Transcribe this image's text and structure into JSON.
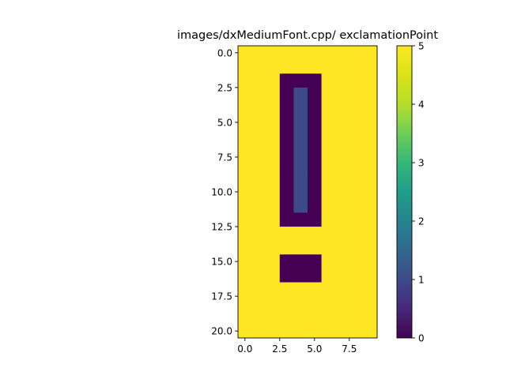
{
  "chart_data": {
    "type": "heatmap",
    "title": "images/dxMediumFont.cpp/ exclamationPoint",
    "xlabel": "",
    "ylabel": "",
    "n_rows": 21,
    "n_cols": 10,
    "xlim": [
      -0.5,
      9.5
    ],
    "ylim": [
      20.5,
      -0.5
    ],
    "x_ticks": [
      0.0,
      2.5,
      5.0,
      7.5
    ],
    "x_tick_labels": [
      "0.0",
      "2.5",
      "5.0",
      "7.5"
    ],
    "y_ticks": [
      0.0,
      2.5,
      5.0,
      7.5,
      10.0,
      12.5,
      15.0,
      17.5,
      20.0
    ],
    "y_tick_labels": [
      "0.0",
      "2.5",
      "5.0",
      "7.5",
      "10.0",
      "12.5",
      "15.0",
      "17.5",
      "20.0"
    ],
    "colorscale": "viridis",
    "vmin": 0,
    "vmax": 5,
    "colorbar_ticks": [
      0,
      1,
      2,
      3,
      4,
      5
    ],
    "colorbar_tick_labels": [
      "0",
      "1",
      "2",
      "3",
      "4",
      "5"
    ],
    "grid": false,
    "values": [
      [
        5,
        5,
        5,
        5,
        5,
        5,
        5,
        5,
        5,
        5
      ],
      [
        5,
        5,
        5,
        5,
        5,
        5,
        5,
        5,
        5,
        5
      ],
      [
        5,
        5,
        5,
        0,
        0,
        0,
        5,
        5,
        5,
        5
      ],
      [
        5,
        5,
        5,
        0,
        1,
        0,
        5,
        5,
        5,
        5
      ],
      [
        5,
        5,
        5,
        0,
        1,
        0,
        5,
        5,
        5,
        5
      ],
      [
        5,
        5,
        5,
        0,
        1,
        0,
        5,
        5,
        5,
        5
      ],
      [
        5,
        5,
        5,
        0,
        1,
        0,
        5,
        5,
        5,
        5
      ],
      [
        5,
        5,
        5,
        0,
        1,
        0,
        5,
        5,
        5,
        5
      ],
      [
        5,
        5,
        5,
        0,
        1,
        0,
        5,
        5,
        5,
        5
      ],
      [
        5,
        5,
        5,
        0,
        1,
        0,
        5,
        5,
        5,
        5
      ],
      [
        5,
        5,
        5,
        0,
        1,
        0,
        5,
        5,
        5,
        5
      ],
      [
        5,
        5,
        5,
        0,
        1,
        0,
        5,
        5,
        5,
        5
      ],
      [
        5,
        5,
        5,
        0,
        0,
        0,
        5,
        5,
        5,
        5
      ],
      [
        5,
        5,
        5,
        5,
        5,
        5,
        5,
        5,
        5,
        5
      ],
      [
        5,
        5,
        5,
        5,
        5,
        5,
        5,
        5,
        5,
        5
      ],
      [
        5,
        5,
        5,
        0,
        0,
        0,
        5,
        5,
        5,
        5
      ],
      [
        5,
        5,
        5,
        0,
        0,
        0,
        5,
        5,
        5,
        5
      ],
      [
        5,
        5,
        5,
        5,
        5,
        5,
        5,
        5,
        5,
        5
      ],
      [
        5,
        5,
        5,
        5,
        5,
        5,
        5,
        5,
        5,
        5
      ],
      [
        5,
        5,
        5,
        5,
        5,
        5,
        5,
        5,
        5,
        5
      ],
      [
        5,
        5,
        5,
        5,
        5,
        5,
        5,
        5,
        5,
        5
      ]
    ]
  }
}
